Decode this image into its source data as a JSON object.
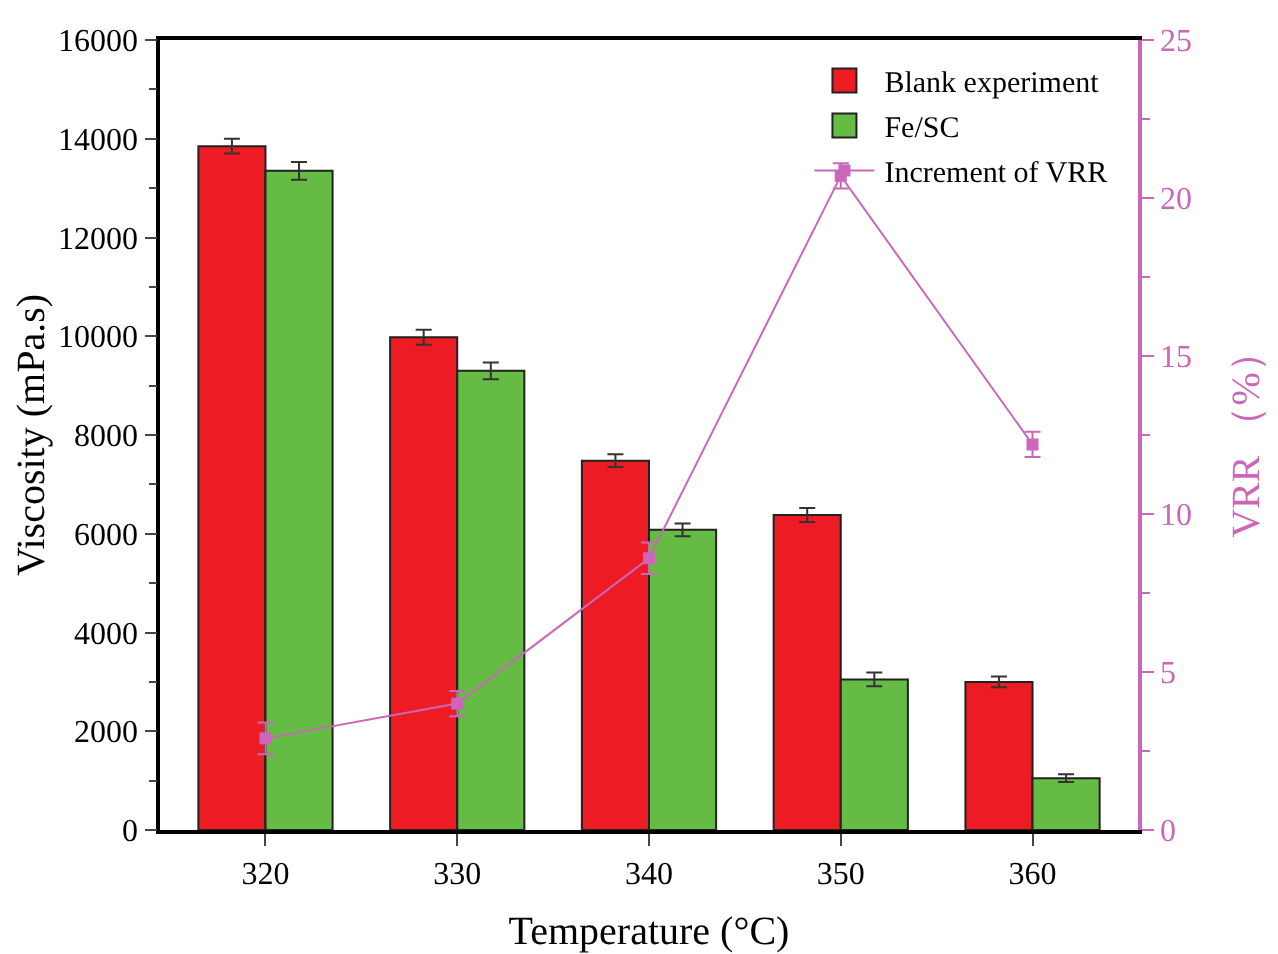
{
  "chart_data": {
    "type": "bar",
    "xlabel": "Temperature (°C)",
    "ylabel": "Viscosity (mPa.s)",
    "y2label": "VRR （%）",
    "categories": [
      "320",
      "330",
      "340",
      "350",
      "360"
    ],
    "series": [
      {
        "name": "Blank experiment",
        "color": "#ed1c24",
        "values": [
          13850,
          9980,
          7480,
          6380,
          3000
        ],
        "errors": [
          150,
          150,
          130,
          140,
          110
        ]
      },
      {
        "name": "Fe/SC",
        "color": "#66bb44",
        "values": [
          13350,
          9300,
          6080,
          3050,
          1050
        ],
        "errors": [
          180,
          170,
          130,
          140,
          80
        ]
      },
      {
        "name": "Increment of VRR",
        "type": "line",
        "axis": "y2",
        "color": "#cc66bb",
        "marker": "square",
        "values": [
          2.9,
          4.0,
          8.6,
          20.7,
          12.2
        ],
        "errors": [
          0.5,
          0.4,
          0.5,
          0.4,
          0.4
        ]
      }
    ],
    "ylim": [
      0,
      16000
    ],
    "yticks": [
      0,
      2000,
      4000,
      6000,
      8000,
      10000,
      12000,
      14000,
      16000
    ],
    "y2lim": [
      0,
      25
    ],
    "y2ticks": [
      0,
      5,
      10,
      15,
      20,
      25
    ],
    "legend": "top right",
    "grid": false
  }
}
